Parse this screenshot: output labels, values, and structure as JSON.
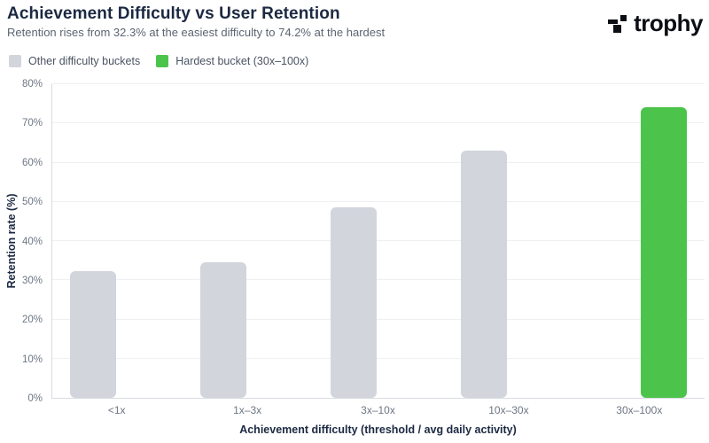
{
  "header": {
    "title": "Achievement Difficulty vs User Retention",
    "subtitle": "Retention rises from 32.3% at the easiest difficulty to 74.2% at the hardest",
    "logo_text": "trophy"
  },
  "legend": {
    "items": [
      {
        "label": "Other difficulty buckets",
        "color": "#d2d5dc"
      },
      {
        "label": "Hardest bucket (30x–100x)",
        "color": "#4cc44c"
      }
    ]
  },
  "chart_data": {
    "type": "bar",
    "title": "Achievement Difficulty vs User Retention",
    "categories": [
      "<1x",
      "1x–3x",
      "3x–10x",
      "10x–30x",
      "30x–100x"
    ],
    "series": [
      {
        "name": "Other difficulty buckets",
        "color": "#d2d5dc",
        "values": [
          32.3,
          34.6,
          48.7,
          63.1,
          null
        ]
      },
      {
        "name": "Hardest bucket (30x–100x)",
        "color": "#4cc44c",
        "values": [
          null,
          null,
          null,
          null,
          74.2
        ]
      }
    ],
    "xlabel": "Achievement difficulty (threshold / avg daily activity)",
    "ylabel": "Retention rate (%)",
    "ylim": [
      0,
      80
    ],
    "y_ticks": [
      "0%",
      "10%",
      "20%",
      "30%",
      "40%",
      "50%",
      "60%",
      "70%",
      "80%"
    ],
    "grid": "horizontal",
    "legend_position": "top-left"
  }
}
